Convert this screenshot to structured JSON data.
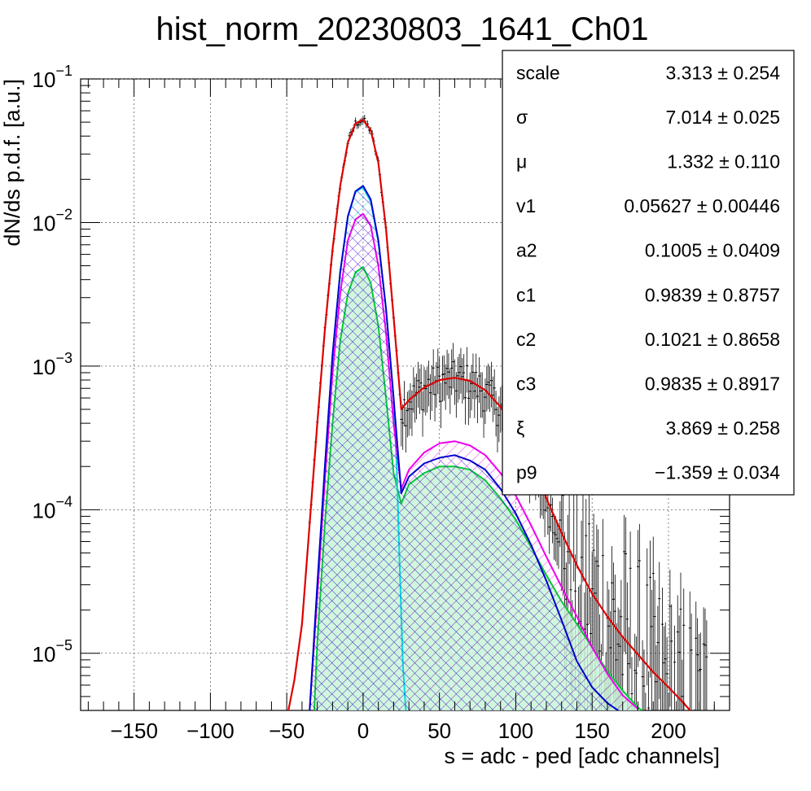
{
  "chart_data": {
    "type": "line",
    "title": "hist_norm_20230803_1641_Ch01",
    "xlabel": "s = adc - ped [adc channels]",
    "ylabel": "dN/ds p.d.f. [a.u.]",
    "xlim": [
      -185,
      240
    ],
    "ylim": [
      4e-06,
      0.1
    ],
    "yscale": "log",
    "grid": true,
    "x_ticks": [
      -150,
      -100,
      -50,
      0,
      50,
      100,
      150,
      200
    ],
    "x_tick_labels": [
      "−150",
      "−100",
      "−50",
      "0",
      "50",
      "100",
      "150",
      "200"
    ],
    "y_ticks": [
      {
        "value": 1e-05,
        "base": "10",
        "exp": "−5"
      },
      {
        "value": 0.0001,
        "base": "10",
        "exp": "−4"
      },
      {
        "value": 0.001,
        "base": "10",
        "exp": "−3"
      },
      {
        "value": 0.01,
        "base": "10",
        "exp": "−2"
      },
      {
        "value": 0.1,
        "base": "10",
        "exp": "−1"
      }
    ],
    "series": [
      {
        "color": "#dd0000",
        "role": "total-fit",
        "x": [
          -50,
          -45,
          -40,
          -35,
          -30,
          -25,
          -20,
          -15,
          -10,
          -5,
          0,
          5,
          10,
          15,
          20,
          25,
          30,
          40,
          50,
          60,
          70,
          80,
          90,
          100,
          110,
          120,
          130,
          140,
          150,
          160,
          170,
          180,
          190,
          200,
          210,
          215
        ],
        "y": [
          3.5e-06,
          6.5e-06,
          1.6e-05,
          8e-05,
          0.0004,
          0.0018,
          0.0065,
          0.018,
          0.036,
          0.049,
          0.052,
          0.044,
          0.026,
          0.009,
          0.0022,
          0.0005,
          0.00058,
          0.00071,
          0.0008,
          0.00083,
          0.00079,
          0.00068,
          0.00052,
          0.00035,
          0.00021,
          0.00012,
          6.9e-05,
          4.1e-05,
          2.6e-05,
          1.8e-05,
          1.3e-05,
          9.8e-06,
          7.4e-06,
          5.8e-06,
          4.5e-06,
          3.9e-06
        ]
      },
      {
        "color": "#0000cc",
        "role": "component",
        "fill": "hatch",
        "x": [
          -35,
          -30,
          -25,
          -20,
          -15,
          -10,
          -5,
          0,
          5,
          10,
          15,
          20,
          25,
          30,
          40,
          50,
          60,
          70,
          80,
          90,
          100,
          110,
          120,
          130,
          140,
          150,
          160,
          170
        ],
        "y": [
          4e-06,
          3e-05,
          0.0002,
          0.0012,
          0.0045,
          0.011,
          0.0165,
          0.018,
          0.0145,
          0.0075,
          0.0025,
          0.0006,
          0.00013,
          0.00017,
          0.00021,
          0.00023,
          0.00024,
          0.00022,
          0.00019,
          0.00014,
          9.4e-05,
          5.7e-05,
          3.2e-05,
          1.7e-05,
          8.8e-06,
          5.8e-06,
          4.5e-06,
          3.8e-06
        ]
      },
      {
        "color": "#ee00ee",
        "role": "component",
        "fill": "hatch",
        "x": [
          -35,
          -30,
          -25,
          -20,
          -15,
          -10,
          -5,
          0,
          5,
          10,
          15,
          20,
          25,
          30,
          40,
          50,
          60,
          70,
          80,
          90,
          100,
          110,
          120,
          130,
          140,
          150,
          160,
          170,
          180
        ],
        "y": [
          4e-06,
          2.5e-05,
          0.00016,
          0.0009,
          0.0032,
          0.0075,
          0.0105,
          0.0115,
          0.0095,
          0.005,
          0.0017,
          0.0004,
          0.00014,
          0.00019,
          0.00025,
          0.00029,
          0.0003,
          0.00028,
          0.00024,
          0.00018,
          0.000125,
          7.8e-05,
          4.7e-05,
          2.9e-05,
          1.8e-05,
          1.1e-05,
          7.2e-06,
          5.1e-06,
          4.1e-06
        ]
      },
      {
        "color": "#00dddd",
        "role": "component",
        "fill": "hatch",
        "x": [
          -35,
          -30,
          -25,
          -20,
          -15,
          -10,
          -5,
          0,
          5,
          10,
          15,
          20,
          22,
          24,
          26,
          28
        ],
        "y": [
          4e-06,
          3e-05,
          0.0002,
          0.0012,
          0.0045,
          0.011,
          0.0165,
          0.0175,
          0.014,
          0.0073,
          0.0025,
          0.0006,
          0.0002,
          4e-05,
          8.5e-06,
          4e-06
        ]
      },
      {
        "color": "#00cc33",
        "role": "component",
        "fill": "hatch-fill",
        "x": [
          -32,
          -30,
          -25,
          -20,
          -15,
          -10,
          -5,
          0,
          5,
          10,
          15,
          20,
          25,
          30,
          40,
          50,
          60,
          70,
          80,
          90,
          100,
          110,
          120,
          130,
          140,
          150,
          160,
          170,
          180,
          185
        ],
        "y": [
          4e-06,
          1.2e-05,
          8e-05,
          0.0004,
          0.0015,
          0.0032,
          0.0045,
          0.0049,
          0.0038,
          0.0019,
          0.0006,
          0.00018,
          0.00011,
          0.00015,
          0.00018,
          0.0002,
          0.0002,
          0.00019,
          0.00016,
          0.00012,
          8.5e-05,
          5.5e-05,
          3.5e-05,
          2.3e-05,
          1.6e-05,
          1.1e-05,
          7.5e-06,
          5.5e-06,
          4.2e-06,
          3.8e-06
        ]
      }
    ]
  },
  "stats_box": {
    "rows": [
      {
        "name": "scale",
        "value": "3.313 ± 0.254"
      },
      {
        "name": "σ",
        "value": "7.014 ± 0.025"
      },
      {
        "name": "μ",
        "value": "1.332 ± 0.110"
      },
      {
        "name": "v1",
        "value": "0.05627 ± 0.00446"
      },
      {
        "name": "a2",
        "value": "0.1005 ± 0.0409"
      },
      {
        "name": "c1",
        "value": "0.9839 ± 0.8757"
      },
      {
        "name": "c2",
        "value": "0.1021 ± 0.8658"
      },
      {
        "name": "c3",
        "value": "0.9835 ± 0.8917"
      },
      {
        "name": "ξ",
        "value": "3.869 ± 0.258"
      },
      {
        "name": "p9",
        "value": "−1.359 ± 0.034"
      }
    ]
  }
}
